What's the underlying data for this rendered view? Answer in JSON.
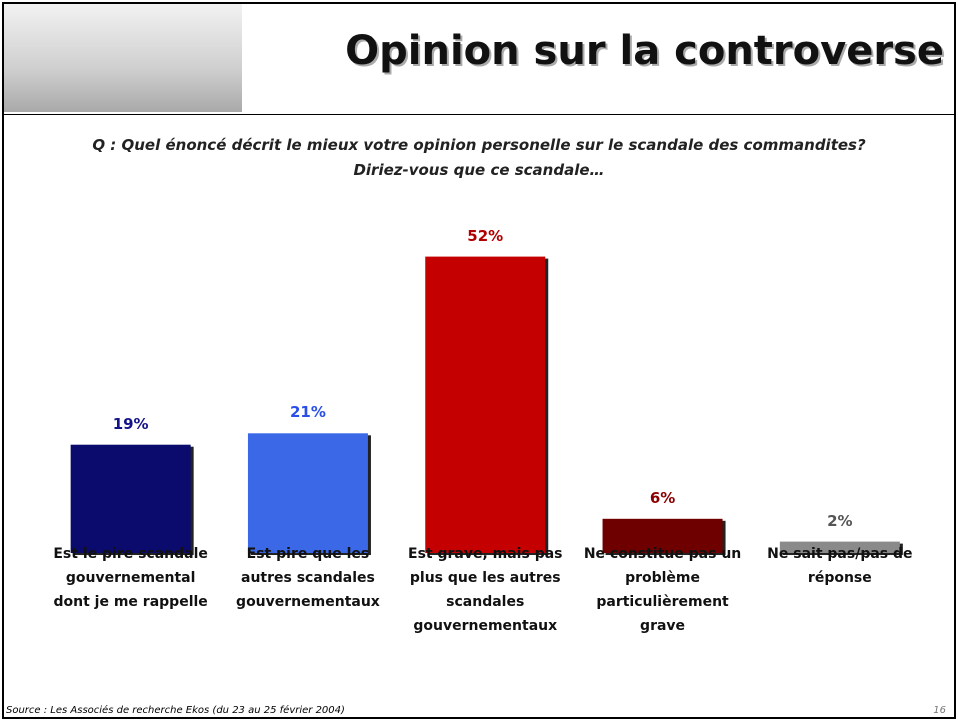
{
  "header": {
    "title": "Opinion sur la controverse"
  },
  "question": [
    "Q : Quel énoncé décrit le mieux votre opinion personelle sur le scandale des commandites?",
    "Diriez-vous que ce scandale…"
  ],
  "chart_data": {
    "type": "bar",
    "categories": [
      "Est le pire scandale gouvernemental dont je me rappelle",
      "Est pire que les autres scandales gouvernementaux",
      "Est grave, mais pas plus que les autres scandales gouvernementaux",
      "Ne constitue pas un problème particulièrement grave",
      "Ne sait pas/pas de réponse"
    ],
    "values": [
      19,
      21,
      52,
      6,
      2
    ],
    "value_labels": [
      "19%",
      "21%",
      "52%",
      "6%",
      "2%"
    ],
    "colors": [
      "#0b0b6e",
      "#3a68e6",
      "#c40000",
      "#6e0000",
      "#8a8a8a"
    ],
    "label_colors": [
      "#14148a",
      "#2a4ee8",
      "#b00000",
      "#8b0000",
      "#555555"
    ]
  },
  "footer": {
    "source": "Source : Les Associés de recherche Ekos (du 23 au 25 février 2004)",
    "page": "16"
  }
}
